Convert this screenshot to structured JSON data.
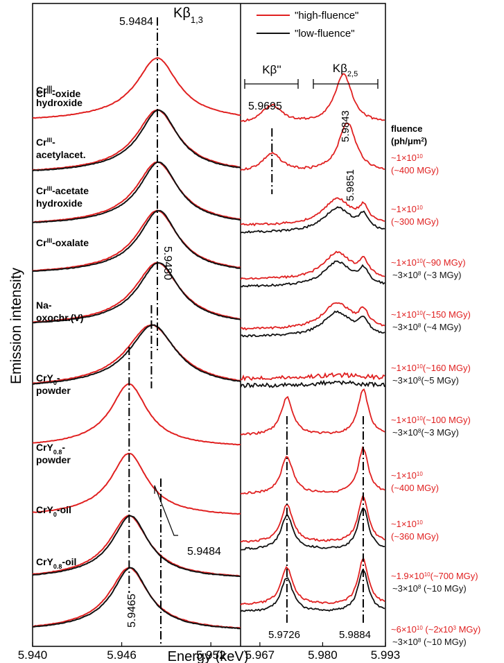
{
  "chart_data": [
    {
      "type": "line",
      "panel": "left",
      "xlabel": "Energy (keV)",
      "ylabel": "Emission intensity",
      "xlim": [
        5.94,
        5.954
      ],
      "xticks": [
        "5.940",
        "5.946",
        "5.952"
      ],
      "peak_labels": {
        "kb13_value": "5.9484",
        "kb13_name": "Kβ",
        "kb13_sub": "1,3",
        "shift_value": "5.9480",
        "low_value": "5.9465",
        "right_value": "5.9484"
      },
      "series": [
        {
          "name": "Cr",
          "sup": "III",
          "post": "-oxide",
          "peak": 5.9484,
          "width": 1.5,
          "red_only": true
        },
        {
          "name": "Cr",
          "sup": "III",
          "post": "-",
          "line2": "hydroxide",
          "peak": 5.9484,
          "width": 1.5
        },
        {
          "name": "Cr",
          "sup": "III",
          "post": "-",
          "line2": "acetylacet.",
          "peak": 5.9484,
          "width": 1.5
        },
        {
          "name": "Cr",
          "sup": "III",
          "post": "-acetate",
          "line2": "hydroxide",
          "peak": 5.9484,
          "width": 1.5
        },
        {
          "name": "Cr",
          "sup": "III",
          "post": "-oxalate",
          "peak": 5.9484,
          "width": 1.6
        },
        {
          "name": "Na-",
          "line2": "oxochr.(V)",
          "peak": 5.948,
          "width": 1.8
        },
        {
          "name": "CrY",
          "sub": "0",
          "post": "-",
          "line2": "powder",
          "peak": 5.9465,
          "width": 1.3,
          "red_only": true
        },
        {
          "name": "CrY",
          "sub": "0.8",
          "post": "-",
          "line2": "powder",
          "peak": 5.9465,
          "width": 1.3,
          "red_only": true
        },
        {
          "name": "CrY",
          "sub": "0",
          "post": "-oil",
          "peak": 5.9465,
          "width": 1.4
        },
        {
          "name": "CrY",
          "sub": "0.8",
          "post": "-oil",
          "peak": 5.9465,
          "width": 1.4
        }
      ]
    },
    {
      "type": "line",
      "panel": "right",
      "xlim": [
        5.963,
        5.993
      ],
      "xticks": [
        "5.967",
        "5.980",
        "5.993"
      ],
      "legend": {
        "high": "\"high-fluence\"",
        "low": "\"low-fluence\"",
        "high_color": "#e02020",
        "low_color": "#111111"
      },
      "kb_labels": {
        "kbpp": "Kβ''",
        "kb25_name": "Kβ",
        "kb25_sub": "2,5"
      },
      "peak_labels": {
        "a": "5.9695",
        "b": "5.9843",
        "c": "5.9851",
        "d": "5.9726",
        "e": "5.9884"
      },
      "fluence_header": {
        "line1": "fluence",
        "line2": "(ph/μm",
        "line2_sup": "2",
        "line2_end": ")"
      },
      "fluence": [
        {
          "red1": "~1×10",
          "red1_sup": "10",
          "red2": "(~400 MGy)"
        },
        {
          "red1": "~1×10",
          "red1_sup": "10",
          "red2": "(~300 MGy)"
        },
        {
          "red1": "~1×10",
          "red1_sup": "10",
          "red1_end": "(~90 MGy)",
          "black": "~3×10",
          "black_sup": "8",
          "black_end": " (~3 MGy)"
        },
        {
          "red1": "~1×10",
          "red1_sup": "10",
          "red1_end": "(~150 MGy)",
          "black": "~3×10",
          "black_sup": "8",
          "black_end": " (~4 MGy)"
        },
        {
          "red1": "~1×10",
          "red1_sup": "10",
          "red1_end": "(~160 MGy)",
          "black": "~3×10",
          "black_sup": "8",
          "black_end": "(~5 MGy)"
        },
        {
          "red1": "~1×10",
          "red1_sup": "10",
          "red1_end": "(~100 MGy)",
          "black": "~3×10",
          "black_sup": "8",
          "black_end": "(~3 MGy)"
        },
        {
          "red1": "~1×10",
          "red1_sup": "10",
          "red2": "(~400 MGy)"
        },
        {
          "red1": "~1×10",
          "red1_sup": "10",
          "red2": "(~360 MGy)"
        },
        {
          "red1": "~1.9×10",
          "red1_sup": "10",
          "red1_end": "(~700 MGy)",
          "black": "~3×10",
          "black_sup": "8",
          "black_end": " (~10 MGy)"
        },
        {
          "red1": "~6×10",
          "red1_sup": "10",
          "red1_end": " (~2x10",
          "red1_sup2": "3",
          "red1_end2": " MGy)",
          "black": "~3×10",
          "black_sup": "8",
          "black_end": " (~10 MGy)"
        }
      ],
      "series": [
        {
          "kind": "kbpp",
          "red_only": true
        },
        {
          "kind": "kbpp2",
          "red_only": true
        },
        {
          "kind": "broad"
        },
        {
          "kind": "broad"
        },
        {
          "kind": "broad"
        },
        {
          "kind": "flat"
        },
        {
          "kind": "sharp",
          "red_only": true
        },
        {
          "kind": "sharp",
          "red_only": true
        },
        {
          "kind": "sharp"
        },
        {
          "kind": "sharp"
        }
      ]
    }
  ]
}
